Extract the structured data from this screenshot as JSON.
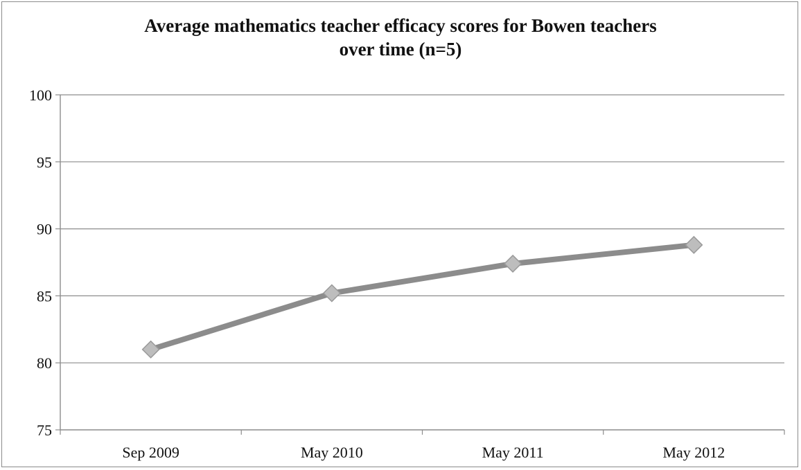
{
  "chart_data": {
    "type": "line",
    "title_lines": [
      "Average mathematics teacher efficacy scores for Bowen teachers",
      "over time (n=5)"
    ],
    "categories": [
      "Sep 2009",
      "May 2010",
      "May 2011",
      "May 2012"
    ],
    "series": [
      {
        "values": [
          81.0,
          85.2,
          87.4,
          88.8
        ]
      }
    ],
    "yticks": [
      75,
      80,
      85,
      90,
      95,
      100
    ],
    "ylim": [
      75,
      100
    ],
    "xlabel": "",
    "ylabel": "",
    "grid": true,
    "legend": "none",
    "line_color": "#8c8c8c",
    "marker_color": "#bdbdbd"
  }
}
